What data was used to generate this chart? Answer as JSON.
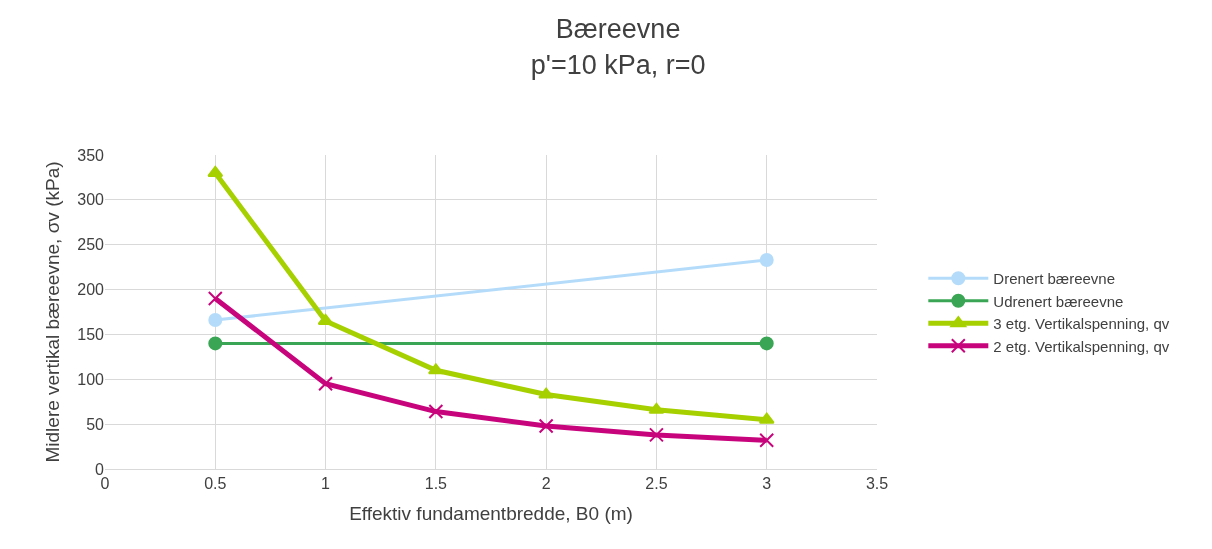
{
  "chart_data": {
    "type": "line",
    "title": "Bæreevne\np'=10 kPa, r=0",
    "xlabel": "Effektiv fundamentbredde, B0 (m)",
    "ylabel": "Midlere vertikal bæreevne, σv (kPa)",
    "xlim": [
      0,
      3.5
    ],
    "xticks": [
      0,
      0.5,
      1,
      1.5,
      2,
      2.5,
      3,
      3.5
    ],
    "ylim": [
      0,
      350
    ],
    "yticks": [
      0,
      50,
      100,
      150,
      200,
      250,
      300,
      350
    ],
    "grid": true,
    "legend": "right",
    "series": [
      {
        "name": "Drenert bæreevne",
        "color": "#b4dcfa",
        "marker": "circle",
        "x": [
          0.5,
          3
        ],
        "values": [
          166,
          233
        ]
      },
      {
        "name": "Udrenert bæreevne",
        "color": "#3aa655",
        "marker": "circle",
        "x": [
          0.5,
          3
        ],
        "values": [
          140,
          140
        ]
      },
      {
        "name": "3 etg. Vertikalspenning, qv",
        "color": "#a6d000",
        "marker": "triangle",
        "x": [
          0.5,
          1,
          1.5,
          2,
          2.5,
          3
        ],
        "values": [
          330,
          165,
          110,
          83,
          66,
          55
        ]
      },
      {
        "name": "2 etg. Vertikalspenning, qv",
        "color": "#c8047c",
        "marker": "cross",
        "x": [
          0.5,
          1,
          1.5,
          2,
          2.5,
          3
        ],
        "values": [
          190,
          95,
          64,
          48,
          38,
          32
        ]
      }
    ]
  }
}
